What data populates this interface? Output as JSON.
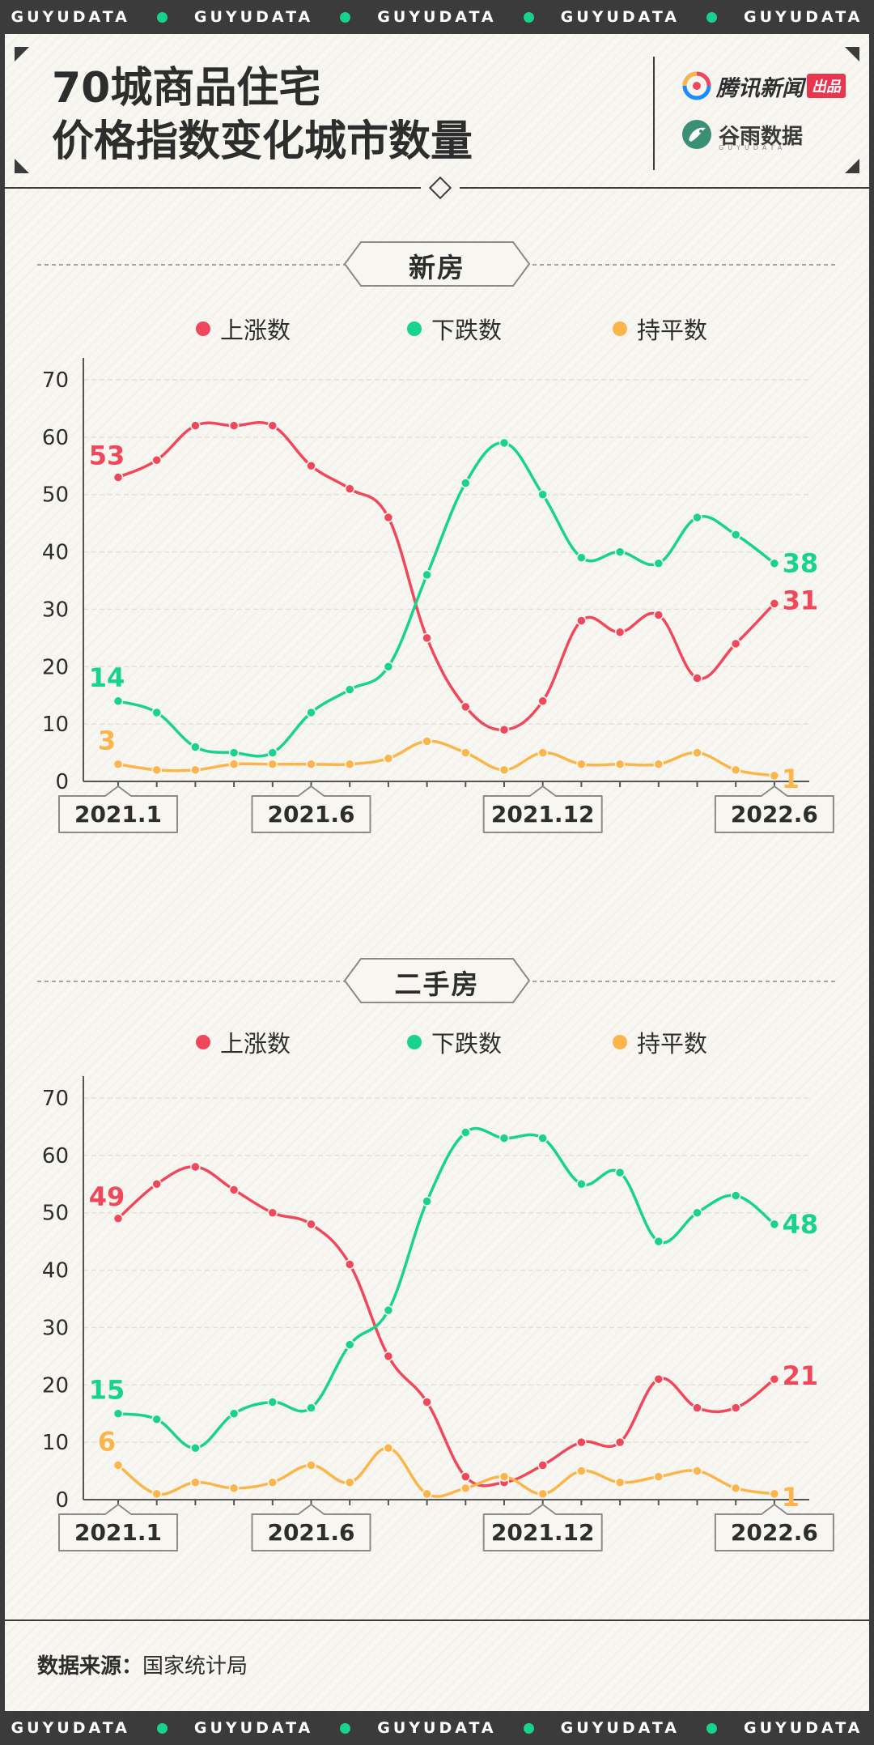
{
  "ticker": [
    "GUYUDATA",
    "GUYUDATA",
    "GUYUDATA",
    "GUYUDATA",
    "GUYUDATA"
  ],
  "header": {
    "title_line1": "70城商品住宅",
    "title_line2": "价格指数变化城市数量",
    "brand_tencent": "腾讯新闻",
    "brand_badge": "出品",
    "brand_guyu": "谷雨数据",
    "brand_guyu_sub": "GUYUDATA"
  },
  "legend": {
    "up": "上涨数",
    "down": "下跌数",
    "flat": "持平数"
  },
  "colors": {
    "up": "#f0485a",
    "down": "#17d38e",
    "flat": "#fbb54a",
    "text": "#2d2d2d",
    "axis": "#555555"
  },
  "source": {
    "label": "数据来源：",
    "value": "国家统计局"
  },
  "chart_data": [
    {
      "type": "line",
      "title": "新房",
      "x": [
        "2021.1",
        "2021.2",
        "2021.3",
        "2021.4",
        "2021.5",
        "2021.6",
        "2021.7",
        "2021.8",
        "2021.9",
        "2021.10",
        "2021.11",
        "2021.12",
        "2022.1",
        "2022.2",
        "2022.3",
        "2022.4",
        "2022.5",
        "2022.6"
      ],
      "x_tick_labels": [
        "2021.1",
        "2021.6",
        "2021.12",
        "2022.6"
      ],
      "y_ticks": [
        0,
        10,
        20,
        30,
        40,
        50,
        60,
        70
      ],
      "ylim": [
        0,
        70
      ],
      "grid": true,
      "legend_position": "top-center",
      "series": [
        {
          "name": "上涨数",
          "values": [
            53,
            56,
            62,
            62,
            62,
            55,
            51,
            46,
            25,
            13,
            9,
            14,
            28,
            26,
            29,
            18,
            24,
            31
          ]
        },
        {
          "name": "下跌数",
          "values": [
            14,
            12,
            6,
            5,
            5,
            12,
            16,
            20,
            36,
            52,
            59,
            50,
            39,
            40,
            38,
            46,
            43,
            38
          ]
        },
        {
          "name": "持平数",
          "values": [
            3,
            2,
            2,
            3,
            3,
            3,
            3,
            4,
            7,
            5,
            2,
            5,
            3,
            3,
            3,
            5,
            2,
            1
          ]
        }
      ],
      "annotations": [
        "53",
        "14",
        "3",
        "38",
        "31",
        "1"
      ]
    },
    {
      "type": "line",
      "title": "二手房",
      "x": [
        "2021.1",
        "2021.2",
        "2021.3",
        "2021.4",
        "2021.5",
        "2021.6",
        "2021.7",
        "2021.8",
        "2021.9",
        "2021.10",
        "2021.11",
        "2021.12",
        "2022.1",
        "2022.2",
        "2022.3",
        "2022.4",
        "2022.5",
        "2022.6"
      ],
      "x_tick_labels": [
        "2021.1",
        "2021.6",
        "2021.12",
        "2022.6"
      ],
      "y_ticks": [
        0,
        10,
        20,
        30,
        40,
        50,
        60,
        70
      ],
      "ylim": [
        0,
        70
      ],
      "grid": true,
      "legend_position": "top-center",
      "series": [
        {
          "name": "上涨数",
          "values": [
            49,
            55,
            58,
            54,
            50,
            48,
            41,
            25,
            17,
            4,
            3,
            6,
            10,
            10,
            21,
            16,
            16,
            21
          ]
        },
        {
          "name": "下跌数",
          "values": [
            15,
            14,
            9,
            15,
            17,
            16,
            27,
            33,
            52,
            64,
            63,
            63,
            55,
            57,
            45,
            50,
            53,
            48
          ]
        },
        {
          "name": "持平数",
          "values": [
            6,
            1,
            3,
            2,
            3,
            6,
            3,
            9,
            1,
            2,
            4,
            1,
            5,
            3,
            4,
            5,
            2,
            1
          ]
        }
      ],
      "annotations": [
        "49",
        "15",
        "6",
        "48",
        "21",
        "1"
      ]
    }
  ]
}
